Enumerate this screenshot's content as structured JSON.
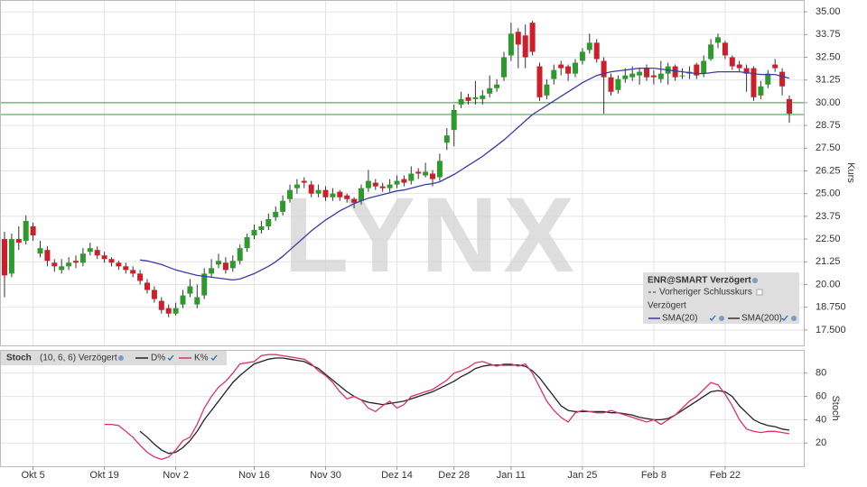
{
  "chart_data": [
    {
      "type": "candlestick",
      "title": "ENR@SMART Verzögert",
      "y_label": "Kurs",
      "ylim": [
        16.65,
        35.65
      ],
      "yticks": [
        {
          "value": 17.5,
          "label": "17.500"
        },
        {
          "value": 18.75,
          "label": "18.750"
        },
        {
          "value": 20,
          "label": "20.00"
        },
        {
          "value": 21.25,
          "label": "21.25"
        },
        {
          "value": 22.5,
          "label": "22.50"
        },
        {
          "value": 23.75,
          "label": "23.75"
        },
        {
          "value": 25,
          "label": "25.00"
        },
        {
          "value": 26.25,
          "label": "26.25"
        },
        {
          "value": 27.5,
          "label": "27.50"
        },
        {
          "value": 28.75,
          "label": "28.75"
        },
        {
          "value": 30,
          "label": "30.00"
        },
        {
          "value": 31.25,
          "label": "31.25"
        },
        {
          "value": 32.5,
          "label": "32.50"
        },
        {
          "value": 33.75,
          "label": "33.75"
        },
        {
          "value": 35,
          "label": "35.00"
        }
      ],
      "grid": true,
      "up_color": "#2e9a2e",
      "down_color": "#cc1f2a",
      "levels": [
        30.0,
        29.35
      ],
      "level_color": "#3a9a3a",
      "watermark": "LYNX",
      "legend_entries": [
        "Vorheriger Schlusskurs",
        "SMA(200)"
      ],
      "legend_section": "Verzögert",
      "candles": [
        [
          22.5,
          22.9,
          19.3,
          20.5
        ],
        [
          20.6,
          22.8,
          20.4,
          22.5
        ],
        [
          22.5,
          23.2,
          21.9,
          22.3
        ],
        [
          22.4,
          23.8,
          22.2,
          23.5
        ],
        [
          23.2,
          23.4,
          22.4,
          22.7
        ],
        [
          21.7,
          22.4,
          21.5,
          22.0
        ],
        [
          21.9,
          22.1,
          21.0,
          21.3
        ],
        [
          21.2,
          21.4,
          20.7,
          21.0
        ],
        [
          20.8,
          21.4,
          20.6,
          21.0
        ],
        [
          21.0,
          21.5,
          20.8,
          21.2
        ],
        [
          21.3,
          21.6,
          20.9,
          21.2
        ],
        [
          21.2,
          22.0,
          21.0,
          21.7
        ],
        [
          21.8,
          22.3,
          21.6,
          22.0
        ],
        [
          21.9,
          22.1,
          21.4,
          21.6
        ],
        [
          21.6,
          21.8,
          21.2,
          21.4
        ],
        [
          21.4,
          21.5,
          21.0,
          21.2
        ],
        [
          21.2,
          21.3,
          20.8,
          21.0
        ],
        [
          21.0,
          21.2,
          20.6,
          20.8
        ],
        [
          20.8,
          21.0,
          20.4,
          20.6
        ],
        [
          20.6,
          20.8,
          20.0,
          20.2
        ],
        [
          20.1,
          20.3,
          19.5,
          19.7
        ],
        [
          19.7,
          19.9,
          19.0,
          19.2
        ],
        [
          19.1,
          19.3,
          18.4,
          18.6
        ],
        [
          18.7,
          18.9,
          18.2,
          18.4
        ],
        [
          18.4,
          19.0,
          18.3,
          18.7
        ],
        [
          18.9,
          19.7,
          18.7,
          19.4
        ],
        [
          19.5,
          20.3,
          19.3,
          19.9
        ],
        [
          18.9,
          20.0,
          18.7,
          19.3
        ],
        [
          19.4,
          20.9,
          19.2,
          20.6
        ],
        [
          20.6,
          21.4,
          20.4,
          20.9
        ],
        [
          21.1,
          21.7,
          20.9,
          21.3
        ],
        [
          21.2,
          21.5,
          20.6,
          20.8
        ],
        [
          20.9,
          21.6,
          20.7,
          21.3
        ],
        [
          21.3,
          22.2,
          21.1,
          22.0
        ],
        [
          22.0,
          22.8,
          21.8,
          22.6
        ],
        [
          22.7,
          23.3,
          22.5,
          23.0
        ],
        [
          23.0,
          23.5,
          22.8,
          23.2
        ],
        [
          23.2,
          23.9,
          23.0,
          23.6
        ],
        [
          23.7,
          24.3,
          23.5,
          24.0
        ],
        [
          24.0,
          24.9,
          23.8,
          24.6
        ],
        [
          24.7,
          25.5,
          24.5,
          25.2
        ],
        [
          25.3,
          25.8,
          25.0,
          25.5
        ],
        [
          25.7,
          25.9,
          25.3,
          25.6
        ],
        [
          25.5,
          25.7,
          24.8,
          25.0
        ],
        [
          25.0,
          25.5,
          24.8,
          25.2
        ],
        [
          25.2,
          25.4,
          24.6,
          24.8
        ],
        [
          24.8,
          25.3,
          24.6,
          25.0
        ],
        [
          25.1,
          25.2,
          24.6,
          24.8
        ],
        [
          24.9,
          25.0,
          24.5,
          24.7
        ],
        [
          24.7,
          24.8,
          24.2,
          24.5
        ],
        [
          24.6,
          25.5,
          24.4,
          25.3
        ],
        [
          25.3,
          26.3,
          25.1,
          25.7
        ],
        [
          25.6,
          25.8,
          25.2,
          25.4
        ],
        [
          25.4,
          25.6,
          25.1,
          25.3
        ],
        [
          25.3,
          25.8,
          25.1,
          25.5
        ],
        [
          25.5,
          26.0,
          25.3,
          25.7
        ],
        [
          25.8,
          26.0,
          25.4,
          25.6
        ],
        [
          25.7,
          26.5,
          25.5,
          26.1
        ],
        [
          26.2,
          26.4,
          25.8,
          26.1
        ],
        [
          26.0,
          26.7,
          25.9,
          26.2
        ],
        [
          26.1,
          26.3,
          25.4,
          25.8
        ],
        [
          25.9,
          27.2,
          25.7,
          26.8
        ],
        [
          27.8,
          28.6,
          27.4,
          28.2
        ],
        [
          28.5,
          29.9,
          27.6,
          29.6
        ],
        [
          29.9,
          30.6,
          29.7,
          30.2
        ],
        [
          30.3,
          30.5,
          29.9,
          30.1
        ],
        [
          30.2,
          31.2,
          29.9,
          30.3
        ],
        [
          30.2,
          30.7,
          29.9,
          30.4
        ],
        [
          30.5,
          31.5,
          30.3,
          30.8
        ],
        [
          30.8,
          31.3,
          30.6,
          31.0
        ],
        [
          31.4,
          32.8,
          31.2,
          32.5
        ],
        [
          32.6,
          34.4,
          32.3,
          33.8
        ],
        [
          33.9,
          34.1,
          31.9,
          33.2
        ],
        [
          33.7,
          34.3,
          31.9,
          32.5
        ],
        [
          34.4,
          34.5,
          32.6,
          32.8
        ],
        [
          32.0,
          32.2,
          30.1,
          30.3
        ],
        [
          30.4,
          31.3,
          30.2,
          31.0
        ],
        [
          31.3,
          32.1,
          31.0,
          31.8
        ],
        [
          32.1,
          32.3,
          31.5,
          31.9
        ],
        [
          32.0,
          32.1,
          31.2,
          31.6
        ],
        [
          31.6,
          32.4,
          31.4,
          32.2
        ],
        [
          32.3,
          33.0,
          32.1,
          32.8
        ],
        [
          32.9,
          33.8,
          32.7,
          33.3
        ],
        [
          33.3,
          33.5,
          32.2,
          32.4
        ],
        [
          32.3,
          32.5,
          29.4,
          31.4
        ],
        [
          31.4,
          31.6,
          30.4,
          30.6
        ],
        [
          30.7,
          31.5,
          30.5,
          31.3
        ],
        [
          31.3,
          31.9,
          31.1,
          31.5
        ],
        [
          31.4,
          32.0,
          31.2,
          31.6
        ],
        [
          31.5,
          31.9,
          31.0,
          31.7
        ],
        [
          31.9,
          32.1,
          31.2,
          31.4
        ],
        [
          31.5,
          31.8,
          31.0,
          31.4
        ],
        [
          31.3,
          32.3,
          31.1,
          31.6
        ],
        [
          31.6,
          32.2,
          31.0,
          32.0
        ],
        [
          32.0,
          32.1,
          31.2,
          31.4
        ],
        [
          31.5,
          31.9,
          31.3,
          31.5
        ],
        [
          31.6,
          32.0,
          31.3,
          31.7
        ],
        [
          32.1,
          32.2,
          31.3,
          31.5
        ],
        [
          31.6,
          32.6,
          31.4,
          32.3
        ],
        [
          32.4,
          33.5,
          32.3,
          33.2
        ],
        [
          33.3,
          33.8,
          33.0,
          33.6
        ],
        [
          33.3,
          33.4,
          32.4,
          32.6
        ],
        [
          32.5,
          32.6,
          31.8,
          32.0
        ],
        [
          32.1,
          32.3,
          31.7,
          31.9
        ],
        [
          31.9,
          32.1,
          30.6,
          31.6
        ],
        [
          31.9,
          32.0,
          30.1,
          30.3
        ],
        [
          30.4,
          31.2,
          30.2,
          30.9
        ],
        [
          31.0,
          31.8,
          30.8,
          31.6
        ],
        [
          32.1,
          32.4,
          31.7,
          31.9
        ],
        [
          31.7,
          31.9,
          30.4,
          30.9
        ],
        [
          30.2,
          30.4,
          28.9,
          29.4
        ]
      ],
      "series": [
        {
          "name": "SMA(20)",
          "color": "#3a3aa8",
          "values": [
            null,
            null,
            null,
            null,
            null,
            null,
            null,
            null,
            null,
            null,
            null,
            null,
            null,
            null,
            null,
            null,
            null,
            null,
            null,
            21.35,
            21.3,
            21.2,
            21.1,
            20.95,
            20.8,
            20.7,
            20.6,
            20.5,
            20.45,
            20.4,
            20.35,
            20.3,
            20.25,
            20.3,
            20.45,
            20.6,
            20.8,
            21.0,
            21.25,
            21.55,
            21.9,
            22.25,
            22.6,
            22.95,
            23.25,
            23.55,
            23.8,
            24.05,
            24.25,
            24.45,
            24.6,
            24.75,
            24.85,
            24.95,
            25.05,
            25.15,
            25.2,
            25.3,
            25.4,
            25.5,
            25.55,
            25.65,
            25.85,
            26.05,
            26.3,
            26.55,
            26.8,
            27.05,
            27.35,
            27.65,
            27.95,
            28.3,
            28.65,
            29.0,
            29.35,
            29.6,
            29.85,
            30.1,
            30.35,
            30.6,
            30.85,
            31.1,
            31.3,
            31.5,
            31.6,
            31.7,
            31.75,
            31.8,
            31.85,
            31.9,
            31.9,
            31.9,
            31.85,
            31.8,
            31.75,
            31.7,
            31.65,
            31.6,
            31.6,
            31.65,
            31.7,
            31.7,
            31.7,
            31.7,
            31.65,
            31.6,
            31.55,
            31.55,
            31.55,
            31.45,
            31.35
          ]
        }
      ]
    },
    {
      "type": "line",
      "title": "Stoch",
      "subtitle": "(10, 6, 6) Verzögert",
      "y_label": "Stoch",
      "ylim": [
        0,
        100
      ],
      "yticks": [
        20,
        40,
        60,
        80
      ],
      "grid": true,
      "categories": [
        null,
        null,
        null,
        null,
        "Okt 5",
        null,
        null,
        null,
        null,
        null,
        null,
        null,
        null,
        null,
        "Okt 19",
        null,
        null,
        null,
        null,
        null,
        null,
        null,
        null,
        null,
        "Nov 2",
        null,
        null,
        null,
        null,
        null,
        null,
        null,
        null,
        null,
        null,
        "Nov 16",
        null,
        null,
        null,
        null,
        null,
        null,
        null,
        null,
        null,
        "Nov 30",
        null,
        null,
        null,
        null,
        null,
        null,
        null,
        null,
        null,
        "Dez 14",
        null,
        null,
        null,
        null,
        null,
        null,
        null,
        "Dez 28",
        null,
        null,
        null,
        null,
        null,
        null,
        null,
        "Jan 11",
        null,
        null,
        null,
        null,
        null,
        null,
        null,
        null,
        null,
        "Jan 25",
        null,
        null,
        null,
        null,
        null,
        null,
        null,
        null,
        null,
        "Feb 8",
        null,
        null,
        null,
        null,
        null,
        null,
        null,
        null,
        null,
        "Feb 22",
        null,
        null,
        null,
        null,
        null,
        null,
        null,
        null,
        null
      ],
      "series": [
        {
          "name": "D%",
          "color": "#222222",
          "values": [
            null,
            null,
            null,
            null,
            null,
            null,
            null,
            null,
            null,
            null,
            null,
            null,
            null,
            null,
            null,
            null,
            null,
            null,
            null,
            30,
            25,
            19,
            14,
            11,
            12,
            16,
            22,
            30,
            40,
            48,
            56,
            64,
            72,
            78,
            83,
            88,
            90,
            92,
            93,
            93,
            92,
            91,
            90,
            87,
            84,
            79,
            74,
            69,
            64,
            60,
            57,
            55,
            54,
            53,
            54,
            55,
            56,
            58,
            60,
            62,
            64,
            67,
            70,
            73,
            77,
            80,
            84,
            86,
            87,
            87,
            87,
            87,
            87,
            86,
            82,
            76,
            68,
            60,
            52,
            48,
            47,
            47,
            47,
            47,
            47,
            46,
            46,
            45,
            44,
            42,
            41,
            40,
            40,
            41,
            44,
            48,
            52,
            56,
            60,
            64,
            65,
            64,
            60,
            52,
            46,
            40,
            37,
            35,
            34,
            32,
            31
          ]
        },
        {
          "name": "K%",
          "color": "#e0306a",
          "values": [
            null,
            null,
            null,
            null,
            null,
            null,
            null,
            null,
            null,
            null,
            null,
            null,
            null,
            null,
            36,
            36,
            35,
            30,
            25,
            18,
            12,
            8,
            6,
            8,
            14,
            22,
            25,
            36,
            50,
            60,
            68,
            73,
            80,
            88,
            89,
            90,
            95,
            96,
            96,
            95,
            94,
            93,
            92,
            88,
            82,
            78,
            72,
            64,
            58,
            60,
            57,
            50,
            47,
            52,
            56,
            50,
            53,
            60,
            62,
            64,
            66,
            70,
            74,
            80,
            82,
            85,
            89,
            90,
            88,
            86,
            88,
            88,
            86,
            88,
            80,
            68,
            56,
            48,
            42,
            38,
            46,
            48,
            47,
            46,
            46,
            48,
            46,
            44,
            42,
            40,
            38,
            40,
            36,
            40,
            44,
            50,
            56,
            60,
            66,
            72,
            70,
            62,
            52,
            40,
            32,
            30,
            29,
            30,
            30,
            29,
            28
          ]
        }
      ]
    }
  ]
}
